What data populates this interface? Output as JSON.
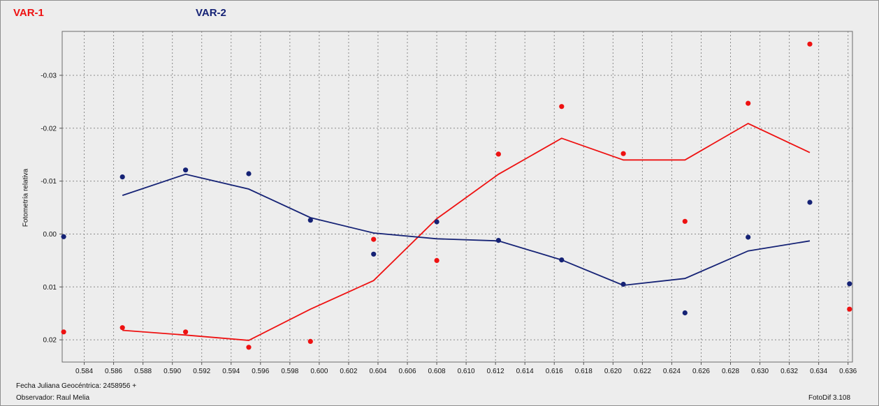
{
  "legend": {
    "var1": "VAR-1",
    "var2": "VAR-2"
  },
  "colors": {
    "var1": "#ee1111",
    "var2": "#152275",
    "background": "#ededed",
    "grid": "#8a8a8a"
  },
  "footer": {
    "fecha": "Fecha Juliana Geocéntrica: 2458956 +",
    "observador": "Observador: Raul Melia",
    "version": "FotoDif 3.108"
  },
  "chart_data": {
    "type": "scatter",
    "title": "",
    "xlabel": "",
    "ylabel": "Fotometría relativa",
    "xlim": [
      0.5825,
      0.6363
    ],
    "ylim": [
      0.0242,
      -0.0383
    ],
    "y_inverted": true,
    "grid": true,
    "x_ticks": [
      "0.584",
      "0.586",
      "0.588",
      "0.590",
      "0.592",
      "0.594",
      "0.596",
      "0.598",
      "0.600",
      "0.602",
      "0.604",
      "0.606",
      "0.608",
      "0.610",
      "0.612",
      "0.614",
      "0.616",
      "0.618",
      "0.620",
      "0.622",
      "0.624",
      "0.626",
      "0.628",
      "0.630",
      "0.632",
      "0.634",
      "0.636"
    ],
    "y_ticks": [
      "-0.03",
      "-0.02",
      "-0.01",
      "0.00",
      "0.01",
      "0.02"
    ],
    "series": [
      {
        "name": "VAR-1",
        "color": "#ee1111",
        "points": [
          [
            0.5826,
            0.0185
          ],
          [
            0.5866,
            0.0177
          ],
          [
            0.5909,
            0.0185
          ],
          [
            0.5952,
            0.0214
          ],
          [
            0.5994,
            0.0203
          ],
          [
            0.6037,
            0.001
          ],
          [
            0.608,
            0.005
          ],
          [
            0.6122,
            -0.0151
          ],
          [
            0.6165,
            -0.0241
          ],
          [
            0.6207,
            -0.0152
          ],
          [
            0.6249,
            -0.0024
          ],
          [
            0.6292,
            -0.0247
          ],
          [
            0.6334,
            -0.0359
          ],
          [
            0.6361,
            0.0142
          ]
        ],
        "trend": [
          [
            0.5866,
            0.0182
          ],
          [
            0.5909,
            0.0191
          ],
          [
            0.5952,
            0.0201
          ],
          [
            0.5994,
            0.0142
          ],
          [
            0.6037,
            0.0088
          ],
          [
            0.608,
            -0.0029
          ],
          [
            0.6122,
            -0.0113
          ],
          [
            0.6165,
            -0.0181
          ],
          [
            0.6207,
            -0.014
          ],
          [
            0.6249,
            -0.014
          ],
          [
            0.6292,
            -0.0209
          ],
          [
            0.6334,
            -0.0154
          ]
        ]
      },
      {
        "name": "VAR-2",
        "color": "#152275",
        "points": [
          [
            0.5826,
            0.0005
          ],
          [
            0.5866,
            -0.0108
          ],
          [
            0.5909,
            -0.0121
          ],
          [
            0.5952,
            -0.0114
          ],
          [
            0.5994,
            -0.0026
          ],
          [
            0.6037,
            0.0038
          ],
          [
            0.608,
            -0.0023
          ],
          [
            0.6122,
            0.0012
          ],
          [
            0.6165,
            0.0049
          ],
          [
            0.6207,
            0.0095
          ],
          [
            0.6249,
            0.0149
          ],
          [
            0.6292,
            0.0006
          ],
          [
            0.6334,
            -0.006
          ],
          [
            0.6361,
            0.0094
          ]
        ],
        "trend": [
          [
            0.5866,
            -0.0073
          ],
          [
            0.5909,
            -0.0113
          ],
          [
            0.5952,
            -0.0085
          ],
          [
            0.5994,
            -0.0031
          ],
          [
            0.6037,
            -0.0002
          ],
          [
            0.608,
            0.0009
          ],
          [
            0.6122,
            0.0013
          ],
          [
            0.6165,
            0.0049
          ],
          [
            0.6207,
            0.0097
          ],
          [
            0.6249,
            0.0084
          ],
          [
            0.6292,
            0.0032
          ],
          [
            0.6334,
            0.0013
          ]
        ]
      }
    ]
  }
}
